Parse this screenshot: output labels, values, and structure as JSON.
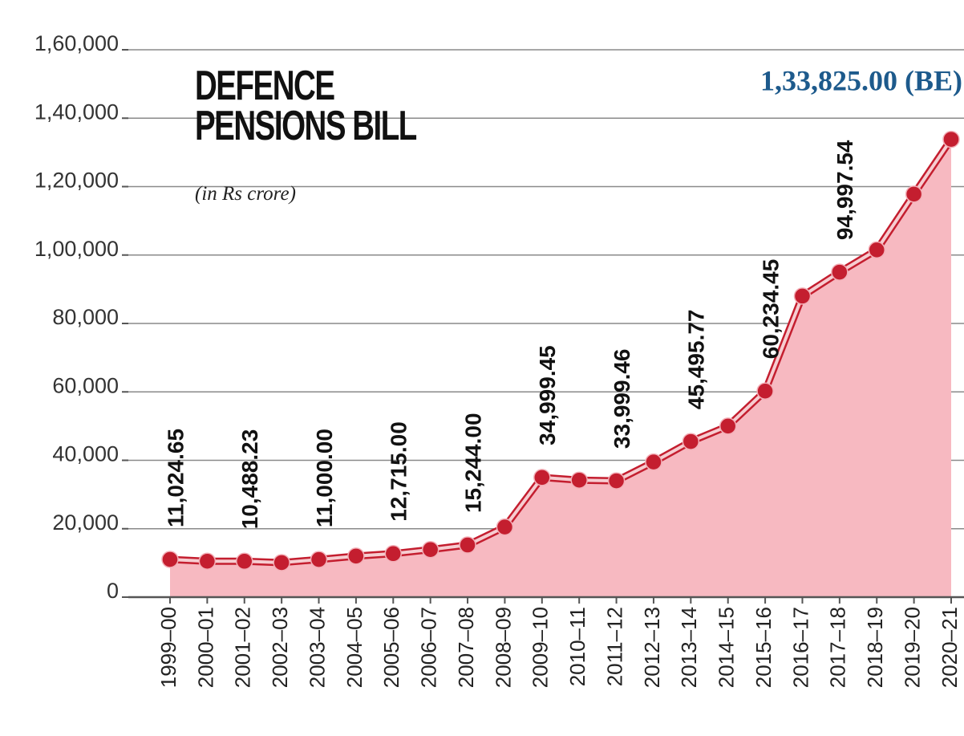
{
  "chart_data": {
    "type": "area_line",
    "title": "DEFENCE PENSIONS BILL",
    "subtitle": "(in Rs crore)",
    "categories": [
      "1999–00",
      "2000–01",
      "2001–02",
      "2002–03",
      "2003–04",
      "2004–05",
      "2005–06",
      "2006–07",
      "2007–08",
      "2008–09",
      "2009–10",
      "2010–11",
      "2011–12",
      "2012–13",
      "2013–14",
      "2014–15",
      "2015–16",
      "2016–17",
      "2017–18",
      "2018–19",
      "2019–20",
      "2020–21"
    ],
    "series": [
      {
        "name": "Defence pensions",
        "color": "#c41e2f",
        "fill": "#f7b9c1",
        "values": [
          11024.65,
          10500,
          10488.23,
          10100,
          11000.0,
          12000,
          12715.0,
          13900,
          15244.0,
          20500,
          34999.45,
          34200,
          33999.46,
          39500,
          45495.77,
          50000,
          60234.45,
          88000,
          94997.54,
          101500,
          117800,
          133825.0
        ],
        "value_labels": [
          "11,024.65",
          null,
          "10,488.23",
          null,
          "11,000.00",
          null,
          "12,715.00",
          null,
          "15,244.00",
          null,
          "34,999.45",
          null,
          "33,999.46",
          null,
          "45,495.77",
          null,
          "60,234.45",
          null,
          "94,997.54",
          null,
          null,
          "1,33,825.00 (BE)"
        ]
      }
    ],
    "ylim": [
      0,
      160000
    ],
    "yticks": [
      0,
      {
        "value": 20000,
        "label": "20,000"
      },
      {
        "value": 40000,
        "label": "40,000"
      },
      {
        "value": 60000,
        "label": "60,000"
      },
      {
        "value": 80000,
        "label": "80,000"
      },
      {
        "value": 100000,
        "label": "1,00,000"
      },
      {
        "value": 120000,
        "label": "1,20,000"
      },
      {
        "value": 140000,
        "label": "1,40,000"
      },
      {
        "value": 160000,
        "label": "1,60,000"
      }
    ],
    "grid": true
  }
}
